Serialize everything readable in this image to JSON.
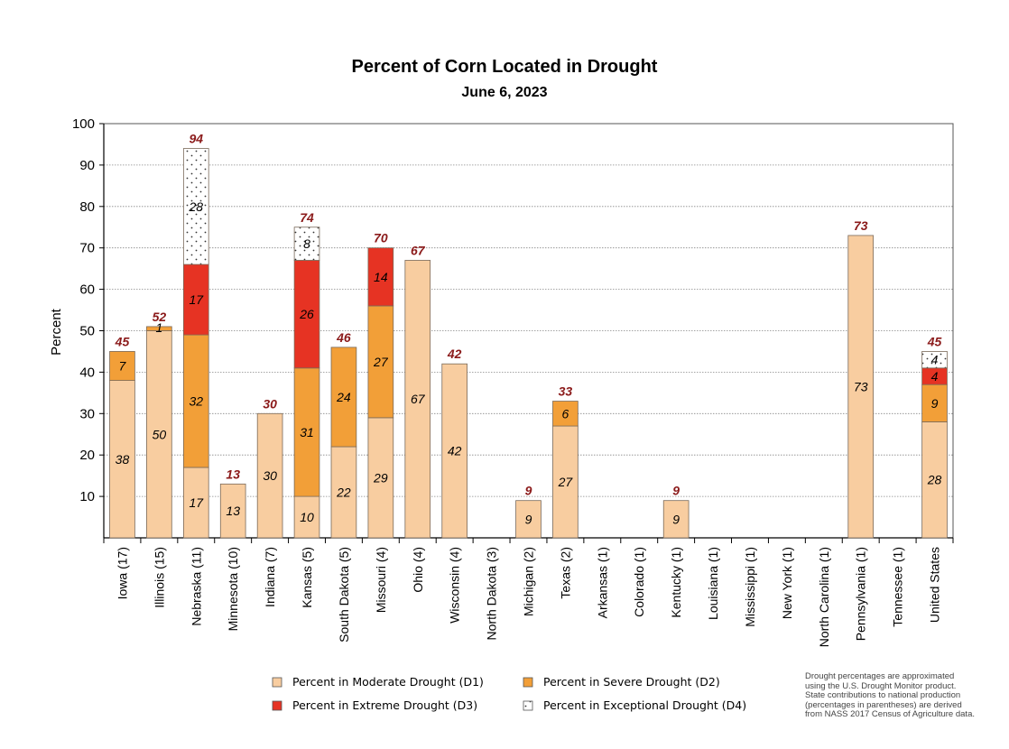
{
  "chart_data": {
    "type": "bar",
    "stacked": true,
    "title": "Percent of Corn Located in Drought",
    "subtitle": "June 6, 2023",
    "ylabel": "Percent",
    "xlabel": "",
    "ylim": [
      0,
      100
    ],
    "yticks": [
      10,
      20,
      30,
      40,
      50,
      60,
      70,
      80,
      90,
      100
    ],
    "grid": true,
    "categories": [
      "Iowa (17)",
      "Illinois (15)",
      "Nebraska (11)",
      "Minnesota (10)",
      "Indiana (7)",
      "Kansas (5)",
      "South Dakota (5)",
      "Missouri (4)",
      "Ohio (4)",
      "Wisconsin (4)",
      "North Dakota (3)",
      "Michigan (2)",
      "Texas (2)",
      "Arkansas (1)",
      "Colorado (1)",
      "Kentucky (1)",
      "Louisiana (1)",
      "Mississippi (1)",
      "New York (1)",
      "North Carolina (1)",
      "Pennsylvania (1)",
      "Tennessee (1)",
      "United States"
    ],
    "series": [
      {
        "name": "Percent in Moderate Drought (D1)",
        "color": "#f8cda0",
        "values": [
          38,
          50,
          17,
          13,
          30,
          10,
          22,
          29,
          67,
          42,
          0,
          9,
          27,
          0,
          0,
          9,
          0,
          0,
          0,
          0,
          73,
          0,
          28
        ]
      },
      {
        "name": "Percent in Severe Drought (D2)",
        "color": "#f29f38",
        "values": [
          7,
          1,
          32,
          0,
          0,
          31,
          24,
          27,
          0,
          0,
          0,
          0,
          6,
          0,
          0,
          0,
          0,
          0,
          0,
          0,
          0,
          0,
          9
        ]
      },
      {
        "name": "Percent in Extreme Drought (D3)",
        "color": "#e63323",
        "values": [
          0,
          0,
          17,
          0,
          0,
          26,
          0,
          14,
          0,
          0,
          0,
          0,
          0,
          0,
          0,
          0,
          0,
          0,
          0,
          0,
          0,
          0,
          4
        ]
      },
      {
        "name": "Percent in Exceptional Drought (D4)",
        "color": "#ffffff",
        "values": [
          0,
          0,
          28,
          0,
          0,
          8,
          0,
          0,
          0,
          0,
          0,
          0,
          0,
          0,
          0,
          0,
          0,
          0,
          0,
          0,
          0,
          0,
          4
        ]
      }
    ],
    "totals": [
      45,
      52,
      94,
      13,
      30,
      74,
      46,
      70,
      67,
      42,
      null,
      9,
      33,
      null,
      null,
      9,
      null,
      null,
      null,
      null,
      73,
      null,
      45
    ],
    "legend_placement": "bottom"
  },
  "note": {
    "lines": [
      "Drought percentages are approximated",
      "using the U.S. Drought Monitor product.",
      "State contributions to national production",
      "(percentages in parentheses) are derived",
      "from NASS 2017 Census of Agriculture data."
    ]
  }
}
